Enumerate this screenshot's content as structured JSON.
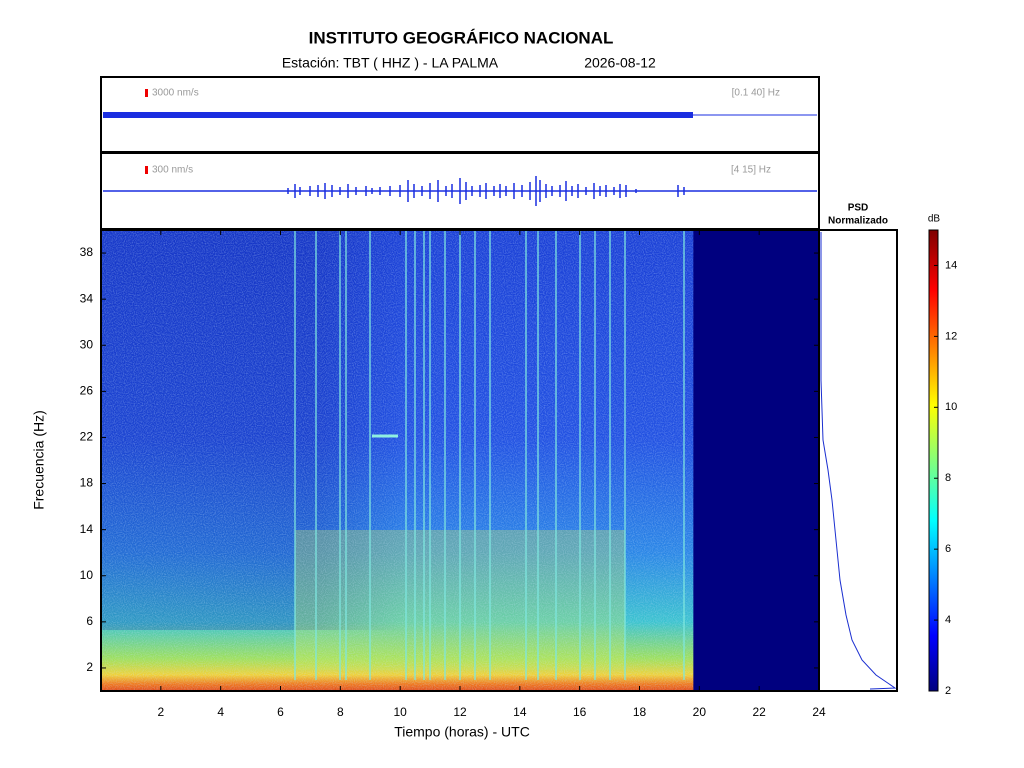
{
  "chart_data": {
    "type": "spectrogram",
    "title": "INSTITUTO GEOGRÁFICO NACIONAL",
    "station": "Estación:  TBT ( HHZ ) - LA PALMA",
    "date": "2026-08-12",
    "xlabel": "Tiempo (horas) - UTC",
    "ylabel": "Frecuencia  (Hz)",
    "xlim": [
      0,
      24
    ],
    "xticks": [
      2,
      4,
      6,
      8,
      10,
      12,
      14,
      16,
      18,
      20,
      22,
      24
    ],
    "ylim": [
      0,
      40
    ],
    "yticks": [
      2,
      6,
      10,
      14,
      18,
      22,
      26,
      30,
      34,
      38
    ],
    "data_end": 19.8,
    "traces": [
      {
        "scale_label": "3000 nm/s",
        "band_label": "[0.1 40] Hz"
      },
      {
        "scale_label": "300 nm/s",
        "band_label": "[4 15] Hz"
      }
    ],
    "psd_title": [
      "PSD",
      "Normalizado"
    ],
    "colorbar": {
      "label": "dB",
      "lim": [
        2,
        15
      ],
      "ticks": [
        2,
        4,
        6,
        8,
        10,
        12,
        14
      ]
    }
  }
}
